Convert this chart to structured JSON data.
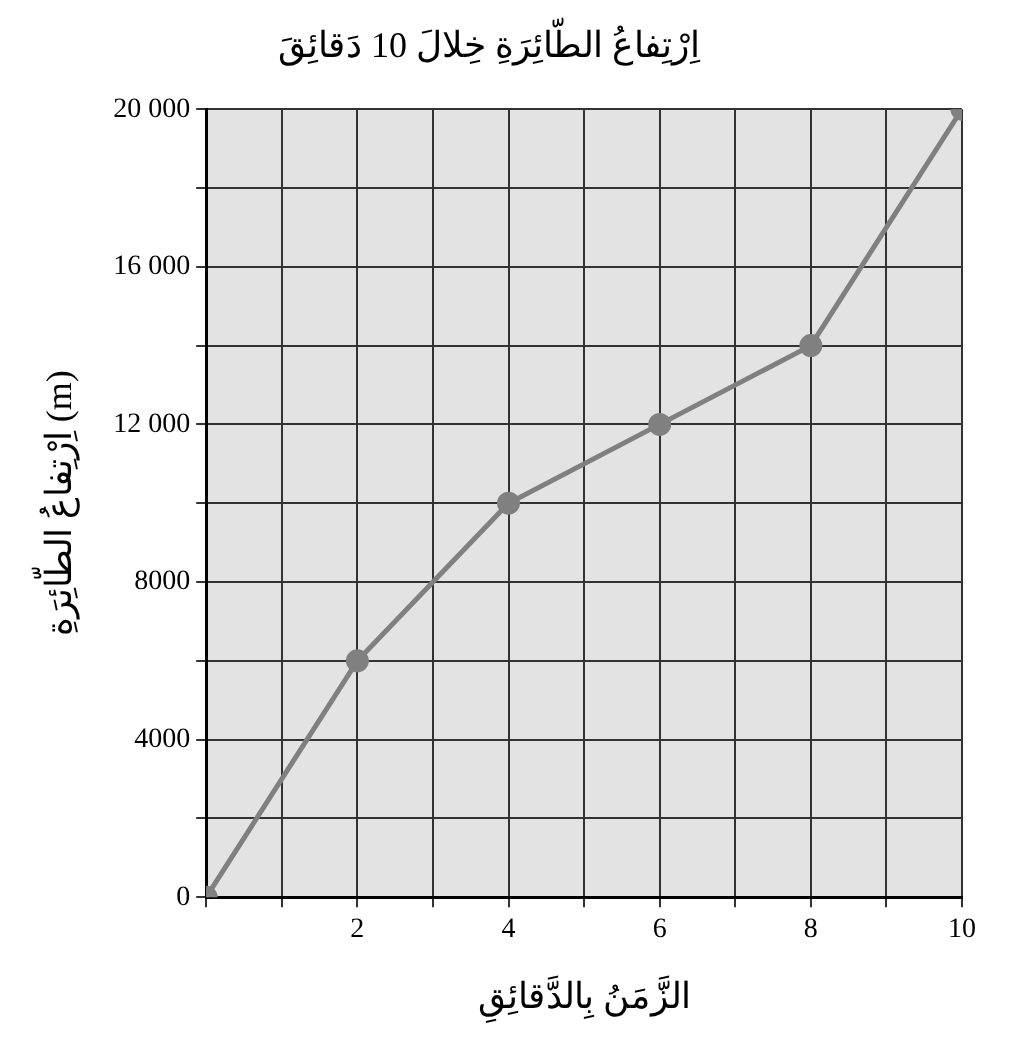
{
  "chart_data": {
    "type": "line",
    "title": "اِرْتِفاعُ الطّائِرَةِ خِلالَ 10 دَقائِقَ",
    "xlabel": "الزَّمَنُ بِالدَّقائِقِ",
    "ylabel": "اِرْتِفاعُ الطّائِرَةِ (m)",
    "x": [
      0,
      2,
      4,
      6,
      8,
      10
    ],
    "series": [
      {
        "color": "#808080",
        "values": [
          0,
          6000,
          10000,
          12000,
          14000,
          20000
        ]
      }
    ],
    "xlim": [
      0,
      10
    ],
    "ylim": [
      0,
      20000
    ],
    "xticks": [
      {
        "value": 0,
        "label": null
      },
      {
        "value": 1,
        "label": null
      },
      2,
      {
        "value": 3,
        "label": null
      },
      4,
      {
        "value": 5,
        "label": null
      },
      6,
      {
        "value": 7,
        "label": null
      },
      8,
      {
        "value": 9,
        "label": null
      },
      10
    ],
    "yticks": [
      0,
      {
        "value": 2000,
        "label": null
      },
      4000,
      {
        "value": 6000,
        "label": null
      },
      8000,
      {
        "value": 10000,
        "label": null
      },
      {
        "value": 12000,
        "label": "12 000"
      },
      {
        "value": 14000,
        "label": null
      },
      {
        "value": 16000,
        "label": "16 000"
      },
      {
        "value": 18000,
        "label": null
      },
      {
        "value": 20000,
        "label": "20 000"
      }
    ],
    "grid": true,
    "marker": "circle",
    "line_style": "solid",
    "legend": false
  }
}
